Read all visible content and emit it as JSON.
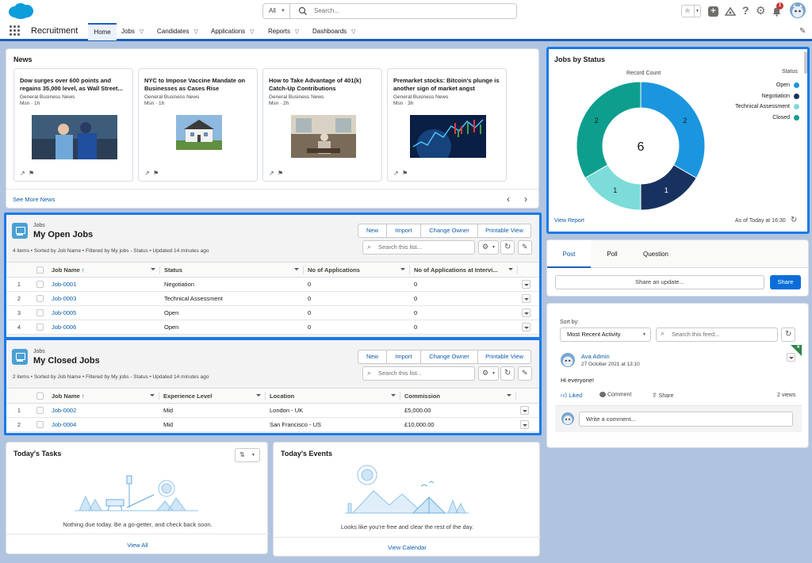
{
  "header": {
    "search": {
      "scope": "All",
      "placeholder": "Search..."
    },
    "notification_count": "1"
  },
  "nav": {
    "app_name": "Recruitment",
    "tabs": [
      {
        "label": "Home",
        "active": true
      },
      {
        "label": "Jobs"
      },
      {
        "label": "Candidates"
      },
      {
        "label": "Applications"
      },
      {
        "label": "Reports"
      },
      {
        "label": "Dashboards"
      }
    ]
  },
  "news": {
    "title": "News",
    "items": [
      {
        "headline": "Dow surges over 600 points and regains 35,000 level, as Wall Street...",
        "source": "General Business News",
        "meta": "Msn · 1h"
      },
      {
        "headline": "NYC to Impose Vaccine Mandate on Businesses as Cases Rise",
        "source": "General Business News",
        "meta": "Msn · 1h"
      },
      {
        "headline": "How to Take Advantage of 401(k) Catch-Up Contributions",
        "source": "General Business News",
        "meta": "Msn · 2h"
      },
      {
        "headline": "Premarket stocks: Bitcoin's plunge is another sign of market angst",
        "source": "General Business News",
        "meta": "Msn · 3h"
      }
    ],
    "see_more": "See More News"
  },
  "open_jobs": {
    "object": "Jobs",
    "title": "My Open Jobs",
    "info": "4 items • Sorted by Job Name • Filtered by My jobs - Status • Updated 14 minutes ago",
    "buttons": [
      "New",
      "Import",
      "Change Owner",
      "Printable View"
    ],
    "search_placeholder": "Search this list...",
    "columns": [
      "Job Name",
      "Status",
      "No of Applications",
      "No of Applications at Intervi..."
    ],
    "rows": [
      [
        "1",
        "Job-0001",
        "Negotiation",
        "0",
        "0"
      ],
      [
        "2",
        "Job-0003",
        "Technical Assessment",
        "0",
        "0"
      ],
      [
        "3",
        "Job-0005",
        "Open",
        "0",
        "0"
      ],
      [
        "4",
        "Job-0006",
        "Open",
        "0",
        "0"
      ]
    ]
  },
  "closed_jobs": {
    "object": "Jobs",
    "title": "My Closed Jobs",
    "info": "2 items • Sorted by Job Name • Filtered by My jobs - Status • Updated 14 minutes ago",
    "buttons": [
      "New",
      "Import",
      "Change Owner",
      "Printable View"
    ],
    "search_placeholder": "Search this list...",
    "columns": [
      "Job Name",
      "Experience Level",
      "Location",
      "Commission"
    ],
    "rows": [
      [
        "1",
        "Job-0002",
        "Mid",
        "London - UK",
        "£5,000.00"
      ],
      [
        "2",
        "Job-0004",
        "Mid",
        "San Francisco - US",
        "£10,000.00"
      ]
    ]
  },
  "tasks": {
    "title": "Today's Tasks",
    "empty": "Nothing due today. Be a go-getter, and check back soon.",
    "link": "View All"
  },
  "events": {
    "title": "Today's Events",
    "empty": "Looks like you're free and clear the rest of the day.",
    "link": "View Calendar"
  },
  "jobs_by_status": {
    "title": "Jobs by Status",
    "center_label": "6",
    "footer_link": "View Report",
    "footer_meta": "As of Today at 16:30",
    "chart_data": {
      "type": "pie",
      "subtitle": "Record Count",
      "legend_title": "Status",
      "legend_position": "right",
      "total": 6,
      "categories": [
        "Open",
        "Negotiation",
        "Technical Assessment",
        "Closed"
      ],
      "values": [
        2,
        1,
        1,
        2
      ],
      "colors": [
        "#1b96de",
        "#18325f",
        "#7cdcda",
        "#0e9e8e"
      ]
    }
  },
  "publisher": {
    "tabs": [
      "Post",
      "Poll",
      "Question"
    ],
    "placeholder": "Share an update...",
    "share": "Share"
  },
  "feed": {
    "sort_label": "Sort by:",
    "sort_value": "Most Recent Activity",
    "search_placeholder": "Search this feed...",
    "post": {
      "author": "Ava Admin",
      "time": "27 October 2021 at 13:10",
      "body": "Hi everyone!",
      "like": "Liked",
      "comment": "Comment",
      "share": "Share",
      "views": "2 views"
    },
    "comment_placeholder": "Write a comment..."
  }
}
